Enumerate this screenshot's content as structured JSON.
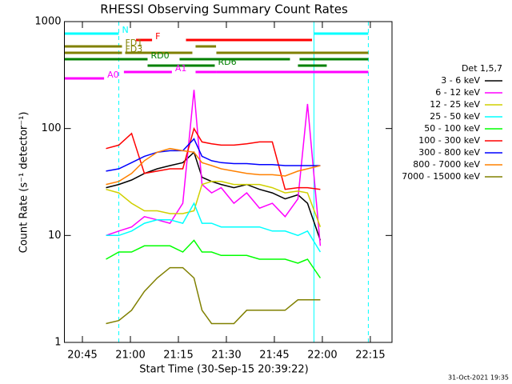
{
  "chart_data": {
    "type": "line",
    "title": "RHESSI Observing Summary Count Rates",
    "x_label": "Start Time (30-Sep-15 20:39:22)",
    "y_label": "Count Rate (s⁻¹ detector⁻¹)",
    "footer": "31-Oct-2021 19:35",
    "legend_title": "Det 1,5,7",
    "log_y": true,
    "xlim": [
      0,
      102.4
    ],
    "xticks": [
      {
        "value": 5.63,
        "label": "20:45"
      },
      {
        "value": 20.63,
        "label": "21:00"
      },
      {
        "value": 35.63,
        "label": "21:15"
      },
      {
        "value": 50.63,
        "label": "21:30"
      },
      {
        "value": 65.63,
        "label": "21:45"
      },
      {
        "value": 80.63,
        "label": "22:00"
      },
      {
        "value": 95.63,
        "label": "22:15"
      }
    ],
    "ylim": [
      1,
      1000
    ],
    "yticks": [
      1,
      10,
      100,
      1000
    ],
    "x": [
      13,
      17,
      21,
      25,
      29,
      33,
      37,
      40.5,
      43,
      46,
      49,
      53,
      57,
      61,
      65,
      69,
      73,
      76,
      80
    ],
    "series": [
      {
        "name": "3 - 6 keV",
        "color": "#000000",
        "values": [
          28,
          30,
          33,
          38,
          42,
          45,
          48,
          60,
          35,
          32,
          30,
          28,
          30,
          27,
          25,
          22,
          24,
          20,
          9
        ]
      },
      {
        "name": "6 - 12 keV",
        "color": "#ff00ff",
        "values": [
          10,
          11,
          12,
          15,
          14,
          13,
          20,
          230,
          30,
          25,
          28,
          20,
          25,
          18,
          20,
          15,
          22,
          170,
          8
        ]
      },
      {
        "name": "12 - 25 keV",
        "color": "#d0d000",
        "values": [
          27,
          25,
          20,
          17,
          17,
          16,
          16,
          17,
          30,
          32,
          32,
          30,
          30,
          30,
          28,
          25,
          26,
          25,
          12
        ]
      },
      {
        "name": "25 - 50 keV",
        "color": "#00ffff",
        "values": [
          10,
          10,
          11,
          13,
          14,
          14,
          13,
          20,
          13,
          13,
          12,
          12,
          12,
          12,
          11,
          11,
          10,
          11,
          7
        ]
      },
      {
        "name": "50 - 100 keV",
        "color": "#00ff00",
        "values": [
          6,
          7,
          7,
          8,
          8,
          8,
          7,
          9,
          7,
          7,
          6.5,
          6.5,
          6.5,
          6,
          6,
          6,
          5.5,
          6,
          4
        ]
      },
      {
        "name": "100 - 300 keV",
        "color": "#ff0000",
        "values": [
          65,
          70,
          90,
          38,
          40,
          42,
          42,
          100,
          75,
          72,
          70,
          70,
          72,
          75,
          75,
          27,
          28,
          28,
          27
        ]
      },
      {
        "name": "300 - 800 keV",
        "color": "#0000ff",
        "values": [
          40,
          42,
          48,
          55,
          60,
          62,
          62,
          80,
          55,
          50,
          48,
          47,
          47,
          46,
          46,
          45,
          45,
          45,
          45
        ]
      },
      {
        "name": "800 - 7000 keV",
        "color": "#ff8000",
        "values": [
          30,
          32,
          38,
          50,
          60,
          65,
          62,
          60,
          48,
          45,
          42,
          40,
          38,
          37,
          37,
          36,
          40,
          42,
          45
        ]
      },
      {
        "name": "7000 - 15000 keV",
        "color": "#808000",
        "values": [
          1.5,
          1.6,
          2,
          3,
          4,
          5,
          5,
          4,
          2,
          1.5,
          1.5,
          1.5,
          2,
          2,
          2,
          2,
          2.5,
          2.5,
          2.5
        ]
      }
    ],
    "flags": [
      {
        "name": "N",
        "color": "#00ffff",
        "intervals": [
          [
            0,
            17
          ],
          [
            78,
            95
          ]
        ]
      },
      {
        "name": "F",
        "color": "#ff0000",
        "intervals": [
          [
            22.4,
            27.4
          ],
          [
            38,
            77.4
          ]
        ]
      },
      {
        "name": "FD1",
        "color": "#808000",
        "intervals": [
          [
            0,
            18
          ],
          [
            41,
            47.4
          ]
        ]
      },
      {
        "name": "FD3",
        "color": "#808000",
        "intervals": [
          [
            0,
            18
          ],
          [
            19,
            40
          ],
          [
            47.5,
            95
          ]
        ]
      },
      {
        "name": "RD0",
        "color": "#008000",
        "intervals": [
          [
            0,
            26
          ],
          [
            36,
            70.5
          ],
          [
            73.5,
            95
          ]
        ]
      },
      {
        "name": "RD6",
        "color": "#008000",
        "intervals": [
          [
            26,
            47
          ],
          [
            73,
            82
          ]
        ]
      },
      {
        "name": "A1",
        "color": "#ff00ff",
        "intervals": [
          [
            18.6,
            33.6
          ],
          [
            41,
            47.4
          ],
          [
            47.4,
            95
          ]
        ]
      },
      {
        "name": "A0",
        "color": "#ff00ff",
        "intervals": [
          [
            0,
            12.4
          ]
        ]
      }
    ]
  }
}
